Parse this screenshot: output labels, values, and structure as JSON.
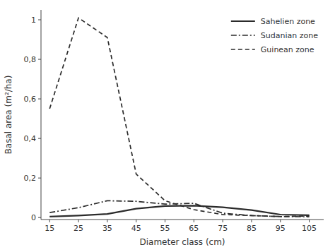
{
  "chart_data": {
    "type": "line",
    "x": [
      15,
      25,
      35,
      45,
      55,
      65,
      75,
      85,
      95,
      105
    ],
    "series": [
      {
        "name": "Sahelien zone",
        "color": "#2b2b2b",
        "line_style": "solid",
        "values": [
          0.005,
          0.01,
          0.018,
          0.045,
          0.058,
          0.06,
          0.052,
          0.038,
          0.015,
          0.012
        ]
      },
      {
        "name": "Sudanian zone",
        "color": "#2b2b2b",
        "line_style": "dashdot",
        "values": [
          0.025,
          0.05,
          0.085,
          0.082,
          0.068,
          0.072,
          0.022,
          0.01,
          0.005,
          0.004
        ]
      },
      {
        "name": "Guinean zone",
        "color": "#2b2b2b",
        "line_style": "dashed",
        "values": [
          0.55,
          1.01,
          0.91,
          0.22,
          0.085,
          0.04,
          0.015,
          0.01,
          0.005,
          0.008
        ]
      }
    ],
    "xlabel": "Diameter class (cm)",
    "ylabel": "Basal area (m²/ha)",
    "xlim": [
      12,
      110
    ],
    "ylim": [
      -0.01,
      1.05
    ],
    "xticks": [
      15,
      25,
      35,
      45,
      55,
      65,
      75,
      85,
      95,
      105
    ],
    "yticks": [
      0,
      {
        "value": 0.2,
        "label": "0,2"
      },
      {
        "value": 0.4,
        "label": "0,4"
      },
      {
        "value": 0.6,
        "label": "0,6"
      },
      {
        "value": 0.8,
        "label": "0,8"
      },
      1
    ],
    "grid": false,
    "legend": "upper right"
  }
}
